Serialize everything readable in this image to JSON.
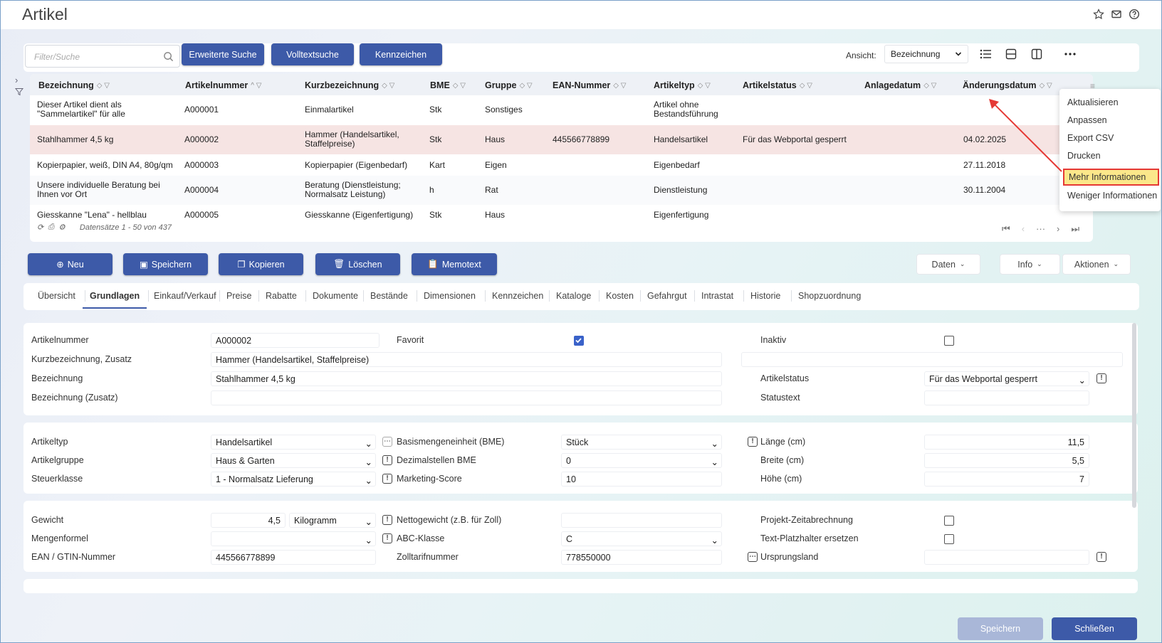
{
  "window": {
    "title": "Artikel"
  },
  "toolbar": {
    "search_placeholder": "Filter/Suche",
    "btn_extended_search": "Erweiterte Suche",
    "btn_fulltext": "Volltextsuche",
    "btn_marker": "Kennzeichen",
    "view_label": "Ansicht:",
    "view_value": "Bezeichnung"
  },
  "grid": {
    "columns": [
      "Bezeichnung",
      "Artikelnummer",
      "Kurzbezeichnung",
      "BME",
      "Gruppe",
      "EAN-Nummer",
      "Artikeltyp",
      "Artikelstatus",
      "Anlagedatum",
      "Änderungsdatum"
    ],
    "rows": [
      {
        "bez": "Dieser Artikel dient als \"Sammelartikel\" für alle",
        "nr": "A000001",
        "kurz": "Einmalartikel",
        "bme": "Stk",
        "gruppe": "Sonstiges",
        "ean": "",
        "typ": "Artikel ohne Bestandsführung",
        "status": "",
        "anlage": "",
        "aend": ""
      },
      {
        "bez": "Stahlhammer 4,5 kg",
        "nr": "A000002",
        "kurz": "Hammer (Handelsartikel, Staffelpreise)",
        "bme": "Stk",
        "gruppe": "Haus",
        "ean": "445566778899",
        "typ": "Handelsartikel",
        "status": "Für das Webportal gesperrt",
        "anlage": "",
        "aend": "04.02.2025"
      },
      {
        "bez": "Kopierpapier, weiß, DIN A4, 80g/qm",
        "nr": "A000003",
        "kurz": "Kopierpapier (Eigenbedarf)",
        "bme": "Kart",
        "gruppe": "Eigen",
        "ean": "",
        "typ": "Eigenbedarf",
        "status": "",
        "anlage": "",
        "aend": "27.11.2018"
      },
      {
        "bez": "Unsere individuelle Beratung bei Ihnen vor Ort",
        "nr": "A000004",
        "kurz": "Beratung (Dienstleistung; Normalsatz Leistung)",
        "bme": "h",
        "gruppe": "Rat",
        "ean": "",
        "typ": "Dienstleistung",
        "status": "",
        "anlage": "",
        "aend": "30.11.2004"
      },
      {
        "bez": "Giesskanne \"Lena\" - hellblau",
        "nr": "A000005",
        "kurz": "Giesskanne (Eigenfertigung)",
        "bme": "Stk",
        "gruppe": "Haus",
        "ean": "",
        "typ": "Eigenfertigung",
        "status": "",
        "anlage": "",
        "aend": ""
      }
    ],
    "footer_count": "Datensätze 1 - 50 von 437"
  },
  "context_menu": {
    "items": [
      "Aktualisieren",
      "Anpassen",
      "Export CSV",
      "Drucken",
      "Mehr Informationen",
      "Weniger Informationen"
    ],
    "highlighted": "Mehr Informationen"
  },
  "actions": {
    "new": "Neu",
    "save": "Speichern",
    "copy": "Kopieren",
    "delete": "Löschen",
    "memo": "Memotext",
    "data": "Daten",
    "info": "Info",
    "actions": "Aktionen"
  },
  "tabs": [
    "Übersicht",
    "Grundlagen",
    "Einkauf/Verkauf",
    "Preise",
    "Rabatte",
    "Dokumente",
    "Bestände",
    "Dimensionen",
    "Kennzeichen",
    "Kataloge",
    "Kosten",
    "Gefahrgut",
    "Intrastat",
    "Historie",
    "Shopzuordnung"
  ],
  "active_tab": "Grundlagen",
  "form1": {
    "artikelnummer_label": "Artikelnummer",
    "artikelnummer": "A000002",
    "favorit_label": "Favorit",
    "favorit": true,
    "inaktiv_label": "Inaktiv",
    "inaktiv": false,
    "kurz_label": "Kurzbezeichnung, Zusatz",
    "kurz": "Hammer (Handelsartikel, Staffelpreise)",
    "bez_label": "Bezeichnung",
    "bez": "Stahlhammer 4,5 kg",
    "status_label": "Artikelstatus",
    "status": "Für das Webportal gesperrt",
    "bezzus_label": "Bezeichnung (Zusatz)",
    "bezzus": "",
    "statustext_label": "Statustext",
    "statustext": ""
  },
  "form2": {
    "typ_label": "Artikeltyp",
    "typ": "Handelsartikel",
    "bme_label": "Basismengeneinheit (BME)",
    "bme": "Stück",
    "laenge_label": "Länge (cm)",
    "laenge": "11,5",
    "gruppe_label": "Artikelgruppe",
    "gruppe": "Haus & Garten",
    "dez_label": "Dezimalstellen BME",
    "dez": "0",
    "breite_label": "Breite (cm)",
    "breite": "5,5",
    "steuer_label": "Steuerklasse",
    "steuer": "1 - Normalsatz Lieferung",
    "score_label": "Marketing-Score",
    "score": "10",
    "hoehe_label": "Höhe (cm)",
    "hoehe": "7"
  },
  "form3": {
    "gewicht_label": "Gewicht",
    "gewicht": "4,5",
    "einheit": "Kilogramm",
    "netto_label": "Nettogewicht (z.B. für Zoll)",
    "netto": "",
    "projekt_label": "Projekt-Zeitabrechnung",
    "projekt": false,
    "mengen_label": "Mengenformel",
    "mengen": "",
    "abc_label": "ABC-Klasse",
    "abc": "C",
    "platz_label": "Text-Platzhalter ersetzen",
    "platz": false,
    "ean_label": "EAN / GTIN-Nummer",
    "ean": "445566778899",
    "zoll_label": "Zolltarifnummer",
    "zoll": "778550000",
    "ursprung_label": "Ursprungsland",
    "ursprung": ""
  },
  "bottom": {
    "save": "Speichern",
    "close": "Schließen"
  },
  "colors": {
    "accent": "#3d5aa8",
    "highlight_border": "#e53935",
    "highlight_fill": "#fbe78a",
    "selected_row": "#f6e4e3"
  }
}
